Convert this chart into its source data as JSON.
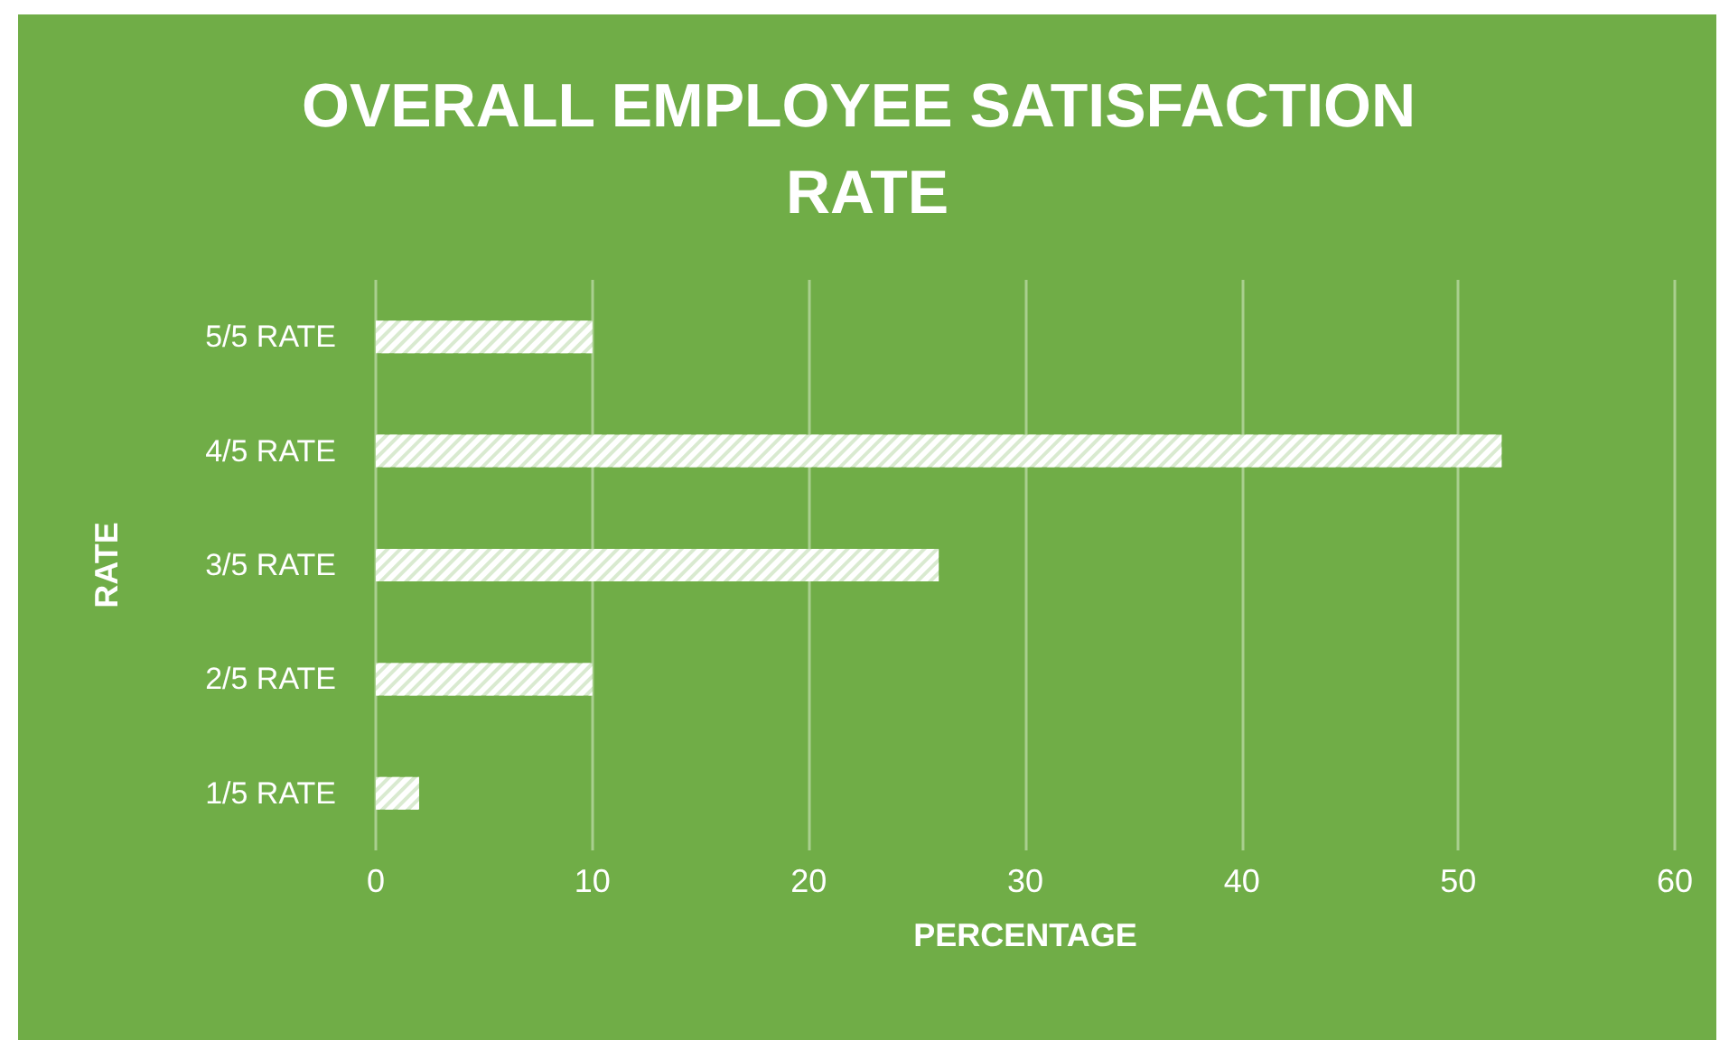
{
  "chart_data": {
    "type": "bar",
    "orientation": "horizontal",
    "title": "OVERALL EMPLOYEE SATISFACTION RATE",
    "xlabel": "PERCENTAGE",
    "ylabel": "RATE",
    "categories": [
      "5/5 RATE",
      "4/5 RATE",
      "3/5 RATE",
      "2/5 RATE",
      "1/5 RATE"
    ],
    "values": [
      10,
      52,
      26,
      10,
      2
    ],
    "color": "#ffffff",
    "xlim": [
      0,
      60
    ],
    "xticks": [
      0,
      10,
      20,
      30,
      40,
      50,
      60
    ],
    "grid": "x"
  }
}
